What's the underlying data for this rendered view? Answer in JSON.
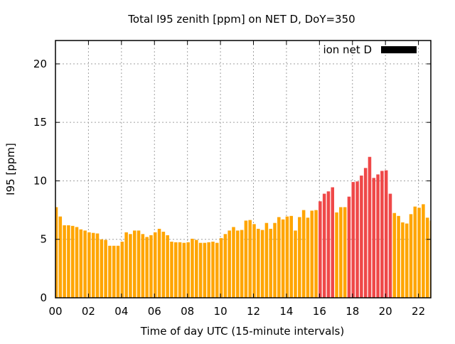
{
  "chart_data": {
    "type": "bar",
    "title": "Total I95 zenith [ppm] on NET D, DoY=350",
    "xlabel": "Time of day UTC (15-minute intervals)",
    "ylabel": "I95 [ppm]",
    "ylim": [
      0,
      22
    ],
    "yticks": [
      "0",
      "5",
      "10",
      "15",
      "20"
    ],
    "ytick_values": [
      0,
      5,
      10,
      15,
      20
    ],
    "xlim_hours": [
      0,
      22.75
    ],
    "xticks": [
      "00",
      "02",
      "04",
      "06",
      "08",
      "10",
      "12",
      "14",
      "16",
      "18",
      "20",
      "22"
    ],
    "xtick_hours": [
      0,
      2,
      4,
      6,
      8,
      10,
      12,
      14,
      16,
      18,
      20,
      22
    ],
    "grid": true,
    "legend": {
      "label": "ion net D",
      "color": "#000000",
      "position": "top-right"
    },
    "interval_hours": 0.25,
    "colors": {
      "normal": "#ffa500",
      "high": "#ef4848"
    },
    "values": [
      7.75,
      6.95,
      6.2,
      6.2,
      6.15,
      6.05,
      5.85,
      5.75,
      5.6,
      5.55,
      5.5,
      5.0,
      4.95,
      4.45,
      4.45,
      4.45,
      4.8,
      5.6,
      5.45,
      5.75,
      5.75,
      5.45,
      5.2,
      5.35,
      5.6,
      5.9,
      5.65,
      5.35,
      4.8,
      4.75,
      4.75,
      4.7,
      4.75,
      5.05,
      4.95,
      4.7,
      4.7,
      4.75,
      4.8,
      4.7,
      5.1,
      5.45,
      5.75,
      6.05,
      5.75,
      5.8,
      6.6,
      6.65,
      6.3,
      5.9,
      5.8,
      6.4,
      5.9,
      6.4,
      6.9,
      6.7,
      6.95,
      7.0,
      5.75,
      6.9,
      7.5,
      6.85,
      7.45,
      7.5,
      8.25,
      8.9,
      9.1,
      9.45,
      7.3,
      7.75,
      7.75,
      8.65,
      9.9,
      9.95,
      10.45,
      11.1,
      12.05,
      10.25,
      10.55,
      10.85,
      10.9,
      8.9,
      7.25,
      7.0,
      6.45,
      6.35,
      7.15,
      7.8,
      7.7,
      8.0,
      6.85,
      6.6
    ],
    "flags": [
      "n",
      "n",
      "n",
      "n",
      "n",
      "n",
      "n",
      "n",
      "n",
      "n",
      "n",
      "n",
      "n",
      "n",
      "n",
      "n",
      "n",
      "n",
      "n",
      "n",
      "n",
      "n",
      "n",
      "n",
      "n",
      "n",
      "n",
      "n",
      "n",
      "n",
      "n",
      "n",
      "n",
      "n",
      "n",
      "n",
      "n",
      "n",
      "n",
      "n",
      "n",
      "n",
      "n",
      "n",
      "n",
      "n",
      "n",
      "n",
      "n",
      "n",
      "n",
      "n",
      "n",
      "n",
      "n",
      "n",
      "n",
      "n",
      "n",
      "n",
      "n",
      "n",
      "n",
      "n",
      "h",
      "h",
      "h",
      "h",
      "n",
      "n",
      "n",
      "h",
      "h",
      "h",
      "h",
      "h",
      "h",
      "h",
      "h",
      "h",
      "h",
      "h",
      "n",
      "n",
      "n",
      "n",
      "n",
      "n",
      "n",
      "n",
      "n",
      "n"
    ]
  }
}
